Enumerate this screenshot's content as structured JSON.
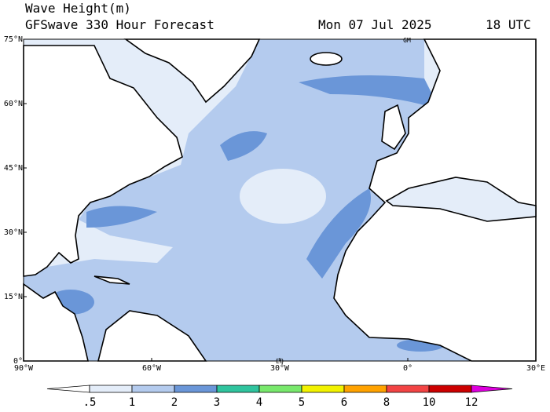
{
  "header": {
    "title": "Wave Height(m)",
    "subtitle": "GFSwave 330 Hour Forecast",
    "date": "Mon 07 Jul 2025",
    "time": "18 UTC"
  },
  "map": {
    "lat_labels": [
      "75°N",
      "60°N",
      "45°N",
      "30°N",
      "15°N",
      "0°"
    ],
    "lon_labels": [
      "90°W",
      "60°W",
      "30°W",
      "0°",
      "30°E"
    ],
    "annotations": [
      "GM",
      "EQ"
    ]
  },
  "colorbar": {
    "labels": [
      ".5",
      "1",
      "2",
      "3",
      "4",
      "5",
      "6",
      "8",
      "10",
      "12"
    ],
    "colors": [
      "#ffffff",
      "#e4edf9",
      "#b4cbee",
      "#6a96d8",
      "#2fc49e",
      "#78e86c",
      "#f2f200",
      "#ffa200",
      "#f24444",
      "#cc0000",
      "#dd00dd"
    ]
  }
}
